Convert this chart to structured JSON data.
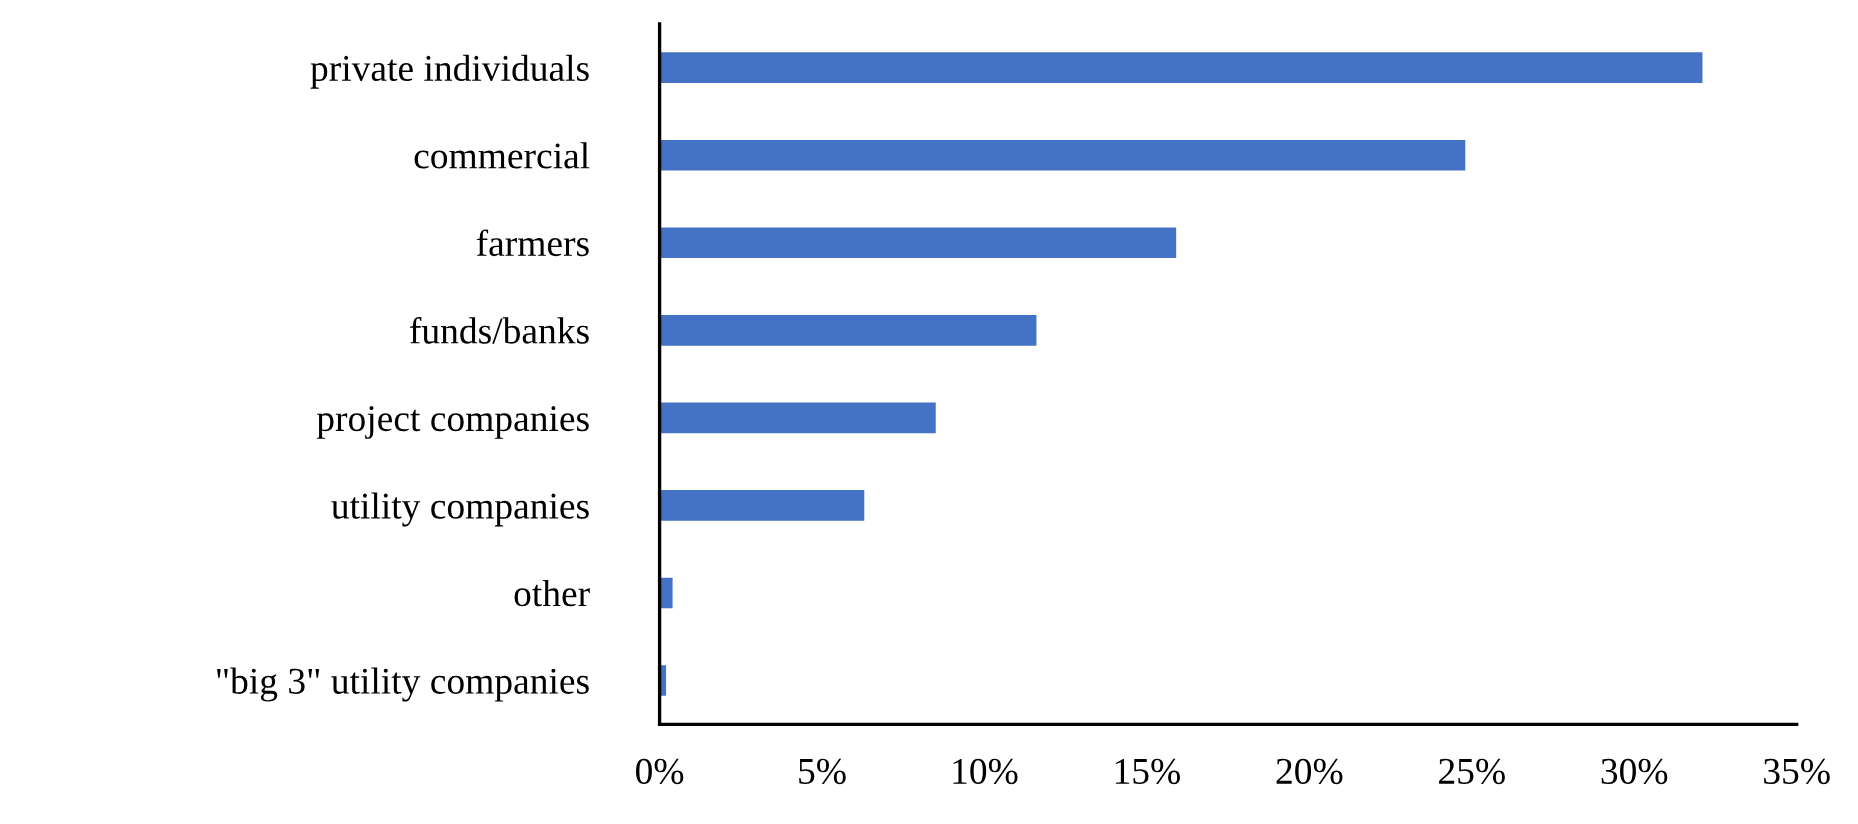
{
  "chart_data": {
    "type": "bar",
    "orientation": "horizontal",
    "categories": [
      "private individuals",
      "commercial",
      "farmers",
      "funds/banks",
      "project companies",
      "utility companies",
      "other",
      "\"big 3\" utility companies"
    ],
    "values": [
      32.1,
      24.8,
      15.9,
      11.6,
      8.5,
      6.3,
      0.4,
      0.2
    ],
    "color": "#4472c4",
    "xlim": [
      0,
      35
    ],
    "xticks": [
      {
        "value": 0,
        "label": "0%"
      },
      {
        "value": 5,
        "label": "5%"
      },
      {
        "value": 10,
        "label": "10%"
      },
      {
        "value": 15,
        "label": "15%"
      },
      {
        "value": 20,
        "label": "20%"
      },
      {
        "value": 25,
        "label": "25%"
      },
      {
        "value": 30,
        "label": "30%"
      },
      {
        "value": 35,
        "label": "35%"
      }
    ],
    "grid": false,
    "legend": false
  }
}
